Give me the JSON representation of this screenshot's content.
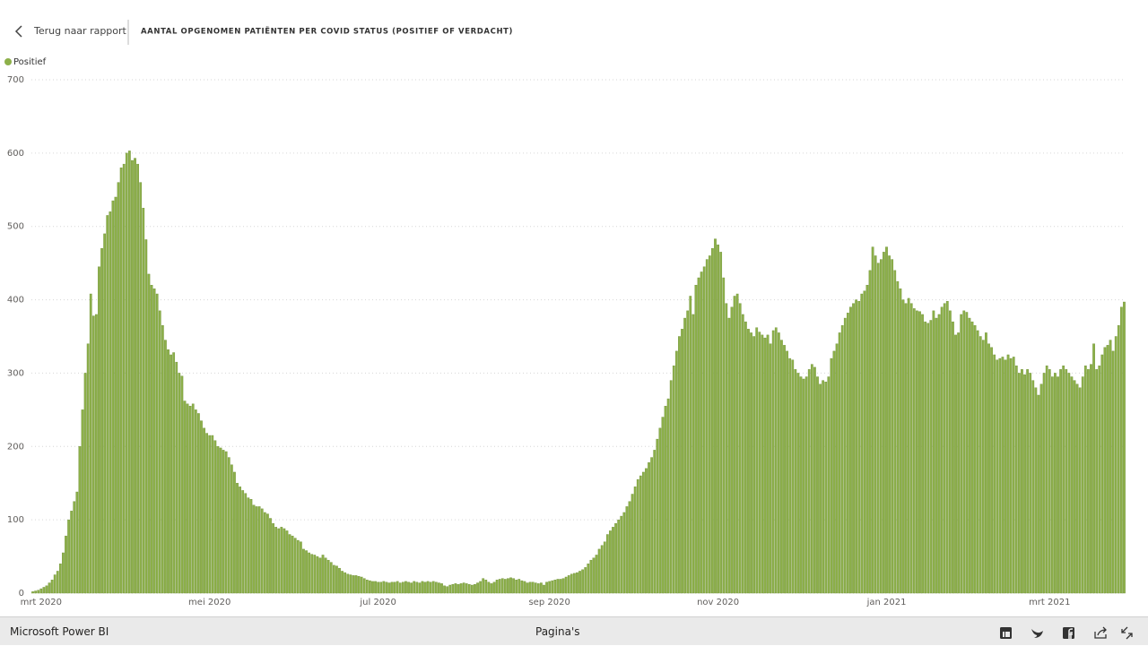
{
  "header": {
    "back": "Terug naar rapport"
  },
  "footer": {
    "brand": "Microsoft Power BI",
    "pages": "Pagina's"
  },
  "chart_data": {
    "type": "bar",
    "title": "AANTAL OPGENOMEN PATIËNTEN PER COVID STATUS (POSITIEF OF VERDACHT)",
    "categories": [
      null,
      null,
      null,
      "mrt 2020",
      null,
      null,
      null,
      null,
      null,
      null,
      null,
      null,
      null,
      null,
      null,
      null,
      null,
      null,
      null,
      null,
      null,
      null,
      null,
      null,
      null,
      null,
      null,
      null,
      null,
      null,
      null,
      null,
      null,
      null,
      null,
      null,
      null,
      null,
      null,
      null,
      null,
      null,
      null,
      null,
      null,
      null,
      null,
      null,
      null,
      null,
      null,
      null,
      null,
      null,
      null,
      null,
      null,
      null,
      null,
      null,
      null,
      null,
      null,
      null,
      "mei 2020",
      null,
      null,
      null,
      null,
      null,
      null,
      null,
      null,
      null,
      null,
      null,
      null,
      null,
      null,
      null,
      null,
      null,
      null,
      null,
      null,
      null,
      null,
      null,
      null,
      null,
      null,
      null,
      null,
      null,
      null,
      null,
      null,
      null,
      null,
      null,
      null,
      null,
      null,
      null,
      null,
      null,
      null,
      null,
      null,
      null,
      null,
      null,
      null,
      null,
      null,
      null,
      null,
      null,
      null,
      null,
      null,
      null,
      null,
      null,
      null,
      "jul 2020",
      null,
      null,
      null,
      null,
      null,
      null,
      null,
      null,
      null,
      null,
      null,
      null,
      null,
      null,
      null,
      null,
      null,
      null,
      null,
      null,
      null,
      null,
      null,
      null,
      null,
      null,
      null,
      null,
      null,
      null,
      null,
      null,
      null,
      null,
      null,
      null,
      null,
      null,
      null,
      null,
      null,
      null,
      null,
      null,
      null,
      null,
      null,
      null,
      null,
      null,
      null,
      null,
      null,
      null,
      null,
      null,
      null,
      null,
      null,
      null,
      null,
      "sep 2020",
      null,
      null,
      null,
      null,
      null,
      null,
      null,
      null,
      null,
      null,
      null,
      null,
      null,
      null,
      null,
      null,
      null,
      null,
      null,
      null,
      null,
      null,
      null,
      null,
      null,
      null,
      null,
      null,
      null,
      null,
      null,
      null,
      null,
      null,
      null,
      null,
      null,
      null,
      null,
      null,
      null,
      null,
      null,
      null,
      null,
      null,
      null,
      null,
      null,
      null,
      null,
      null,
      null,
      null,
      null,
      null,
      null,
      null,
      null,
      null,
      "nov 2020",
      null,
      null,
      null,
      null,
      null,
      null,
      null,
      null,
      null,
      null,
      null,
      null,
      null,
      null,
      null,
      null,
      null,
      null,
      null,
      null,
      null,
      null,
      null,
      null,
      null,
      null,
      null,
      null,
      null,
      null,
      null,
      null,
      null,
      null,
      null,
      null,
      null,
      null,
      null,
      null,
      null,
      null,
      null,
      null,
      null,
      null,
      null,
      null,
      null,
      null,
      null,
      null,
      null,
      null,
      null,
      null,
      null,
      null,
      null,
      null,
      "jan 2021",
      null,
      null,
      null,
      null,
      null,
      null,
      null,
      null,
      null,
      null,
      null,
      null,
      null,
      null,
      null,
      null,
      null,
      null,
      null,
      null,
      null,
      null,
      null,
      null,
      null,
      null,
      null,
      null,
      null,
      null,
      null,
      null,
      null,
      null,
      null,
      null,
      null,
      null,
      null,
      null,
      null,
      null,
      null,
      null,
      null,
      null,
      null,
      null,
      null,
      null,
      null,
      null,
      null,
      null,
      null,
      null,
      null,
      null,
      "mrt 2021",
      null,
      null,
      null,
      null,
      null,
      null,
      null,
      null,
      null,
      null,
      null,
      null,
      null,
      null,
      null,
      null,
      null,
      null,
      null,
      null,
      null,
      null,
      null,
      null,
      null,
      null,
      null
    ],
    "series": [
      {
        "name": "Positief",
        "color": "#8db04a",
        "values": [
          2,
          3,
          4,
          6,
          8,
          10,
          14,
          18,
          25,
          30,
          40,
          55,
          78,
          100,
          112,
          125,
          138,
          200,
          250,
          300,
          340,
          408,
          378,
          380,
          445,
          470,
          490,
          515,
          520,
          535,
          540,
          560,
          580,
          585,
          600,
          603,
          590,
          593,
          585,
          560,
          525,
          482,
          435,
          420,
          415,
          408,
          385,
          365,
          345,
          332,
          325,
          328,
          315,
          300,
          296,
          262,
          258,
          255,
          258,
          250,
          245,
          235,
          225,
          218,
          215,
          215,
          208,
          200,
          198,
          195,
          193,
          185,
          175,
          165,
          150,
          145,
          140,
          136,
          130,
          128,
          120,
          118,
          118,
          115,
          110,
          108,
          102,
          95,
          90,
          88,
          90,
          88,
          85,
          80,
          78,
          75,
          72,
          70,
          60,
          58,
          55,
          53,
          52,
          50,
          48,
          52,
          48,
          45,
          42,
          38,
          37,
          34,
          30,
          28,
          26,
          25,
          24,
          24,
          23,
          22,
          20,
          18,
          17,
          16,
          16,
          15,
          15,
          16,
          15,
          14,
          15,
          15,
          16,
          14,
          15,
          16,
          15,
          14,
          16,
          15,
          14,
          16,
          15,
          16,
          15,
          16,
          15,
          14,
          13,
          10,
          9,
          11,
          12,
          13,
          12,
          13,
          14,
          13,
          12,
          11,
          12,
          14,
          16,
          20,
          18,
          15,
          13,
          15,
          18,
          19,
          20,
          19,
          20,
          21,
          20,
          18,
          19,
          17,
          16,
          14,
          15,
          15,
          14,
          13,
          14,
          11,
          15,
          16,
          17,
          18,
          19,
          19,
          20,
          22,
          24,
          26,
          27,
          28,
          30,
          32,
          35,
          40,
          45,
          48,
          52,
          60,
          65,
          70,
          80,
          85,
          90,
          95,
          100,
          105,
          110,
          118,
          125,
          135,
          145,
          155,
          160,
          165,
          170,
          178,
          185,
          195,
          210,
          225,
          240,
          255,
          265,
          290,
          310,
          330,
          350,
          360,
          375,
          385,
          405,
          380,
          420,
          430,
          438,
          445,
          455,
          460,
          470,
          483,
          475,
          465,
          430,
          395,
          375,
          390,
          405,
          408,
          395,
          380,
          370,
          360,
          355,
          350,
          362,
          356,
          352,
          348,
          352,
          340,
          358,
          362,
          355,
          345,
          338,
          330,
          320,
          318,
          305,
          300,
          295,
          292,
          295,
          305,
          312,
          308,
          295,
          285,
          290,
          288,
          295,
          320,
          330,
          340,
          355,
          365,
          375,
          382,
          390,
          395,
          400,
          398,
          408,
          412,
          420,
          440,
          472,
          460,
          450,
          455,
          465,
          472,
          460,
          455,
          440,
          425,
          415,
          400,
          395,
          402,
          395,
          388,
          385,
          384,
          380,
          370,
          368,
          372,
          385,
          375,
          380,
          390,
          395,
          398,
          385,
          370,
          352,
          355,
          380,
          385,
          383,
          375,
          370,
          365,
          358,
          350,
          345,
          355,
          340,
          335,
          325,
          318,
          320,
          322,
          318,
          325,
          320,
          322,
          310,
          300,
          305,
          298,
          305,
          300,
          290,
          280,
          270,
          285,
          300,
          310,
          305,
          295,
          300,
          295,
          305,
          310,
          305,
          300,
          295,
          290,
          285,
          280,
          295,
          310,
          305,
          312,
          340,
          305,
          310,
          325,
          335,
          338,
          345,
          330,
          350,
          365,
          390,
          397
        ]
      }
    ],
    "ylim": [
      0,
      700
    ],
    "yticks": [
      0,
      100,
      200,
      300,
      400,
      500,
      600,
      700
    ],
    "grid": true,
    "legend": "top-left"
  }
}
